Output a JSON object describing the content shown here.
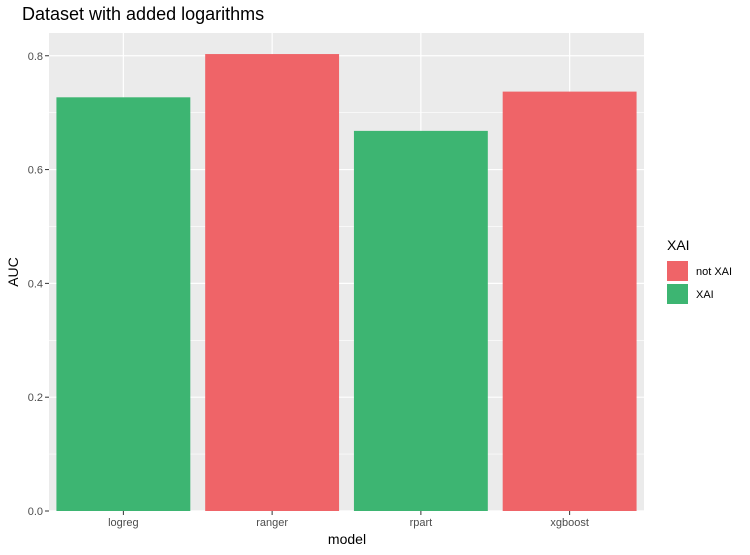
{
  "chart_data": {
    "type": "bar",
    "title": "Dataset with added logarithms",
    "xlabel": "model",
    "ylabel": "AUC",
    "categories": [
      "logreg",
      "ranger",
      "rpart",
      "xgboost"
    ],
    "values": [
      0.727,
      0.803,
      0.668,
      0.737
    ],
    "groups": [
      "XAI",
      "not XAI",
      "XAI",
      "not XAI"
    ],
    "ylim": [
      0,
      0.84
    ],
    "yticks": [
      0.0,
      0.2,
      0.4,
      0.6,
      0.8
    ],
    "ytick_labels": [
      "0.0",
      "0.2",
      "0.4",
      "0.6",
      "0.8"
    ],
    "grid": true,
    "legend": {
      "title": "XAI",
      "position": "right",
      "entries": [
        {
          "label": "not XAI",
          "color": "#ef6468"
        },
        {
          "label": "XAI",
          "color": "#3db572"
        }
      ]
    },
    "colors": {
      "not XAI": "#ef6468",
      "XAI": "#3db572"
    },
    "panel_background": "#ebebeb"
  }
}
